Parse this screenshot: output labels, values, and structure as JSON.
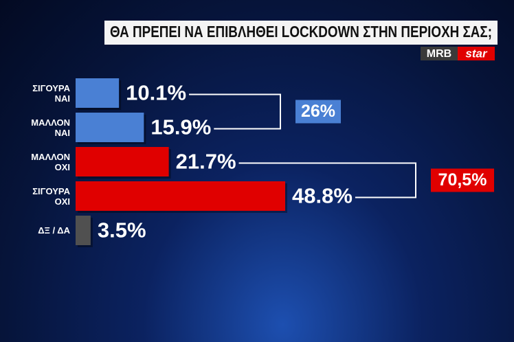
{
  "chart_data": {
    "type": "bar",
    "orientation": "horizontal",
    "title": "ΘΑ ΠΡΕΠΕΙ ΝΑ ΕΠΙΒΛΗΘΕΙ LOCKDOWN ΣΤΗΝ ΠΕΡΙΟΧΗ ΣΑΣ;",
    "logo": [
      "MRB",
      "star"
    ],
    "categories": [
      "ΣΙΓΟΥΡΑ\nΝΑΙ",
      "ΜΑΛΛΟΝ\nΝΑΙ",
      "ΜΑΛΛΟΝ\nΟΧΙ",
      "ΣΙΓΟΥΡΑ\nΟΧΙ",
      "ΔΞ / ΔΑ"
    ],
    "values": [
      10.1,
      15.9,
      21.7,
      48.8,
      3.5
    ],
    "value_labels": [
      "10.1%",
      "15.9%",
      "21.7%",
      "48.8%",
      "3.5%"
    ],
    "colors": [
      "#4a80d4",
      "#4a80d4",
      "#e00000",
      "#e00000",
      "#505050"
    ],
    "totals": [
      {
        "value": 26,
        "label": "26%",
        "color": "#4a80d4"
      },
      {
        "value": 70.5,
        "label": "70,5%",
        "color": "#e00000"
      }
    ]
  }
}
